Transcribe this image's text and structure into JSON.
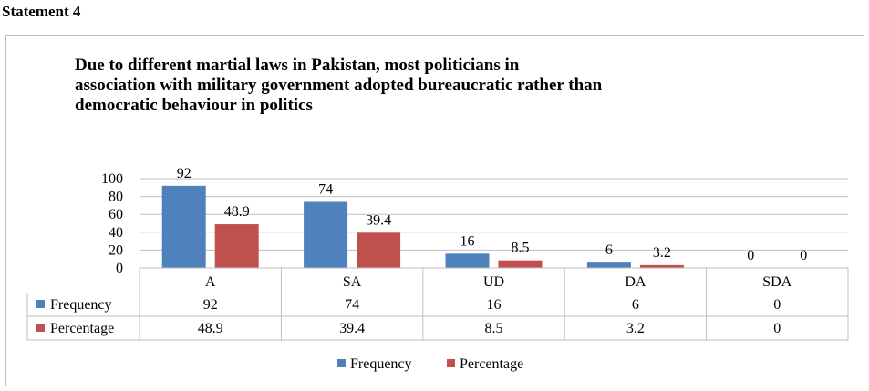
{
  "heading": "Statement 4",
  "chart_data": {
    "type": "bar",
    "title_lines": [
      "Due to different martial laws in Pakistan, most politicians in",
      "association with military government adopted bureaucratic rather than",
      "democratic behaviour in politics"
    ],
    "categories": [
      "A",
      "SA",
      "UD",
      "DA",
      "SDA"
    ],
    "series": [
      {
        "name": "Frequency",
        "values": [
          92,
          74,
          16,
          6,
          0
        ],
        "labels": [
          "92",
          "74",
          "16",
          "6",
          "0"
        ],
        "color": "#4f81bd"
      },
      {
        "name": "Percentage",
        "values": [
          48.9,
          39.4,
          8.5,
          3.2,
          0
        ],
        "labels": [
          "48.9",
          "39.4",
          "8.5",
          "3.2",
          "0"
        ],
        "color": "#c0504d"
      }
    ],
    "ylim": [
      0,
      100
    ],
    "yticks": [
      0,
      20,
      40,
      60,
      80,
      100
    ],
    "grid": true,
    "legend": "bottom",
    "data_table": true
  }
}
